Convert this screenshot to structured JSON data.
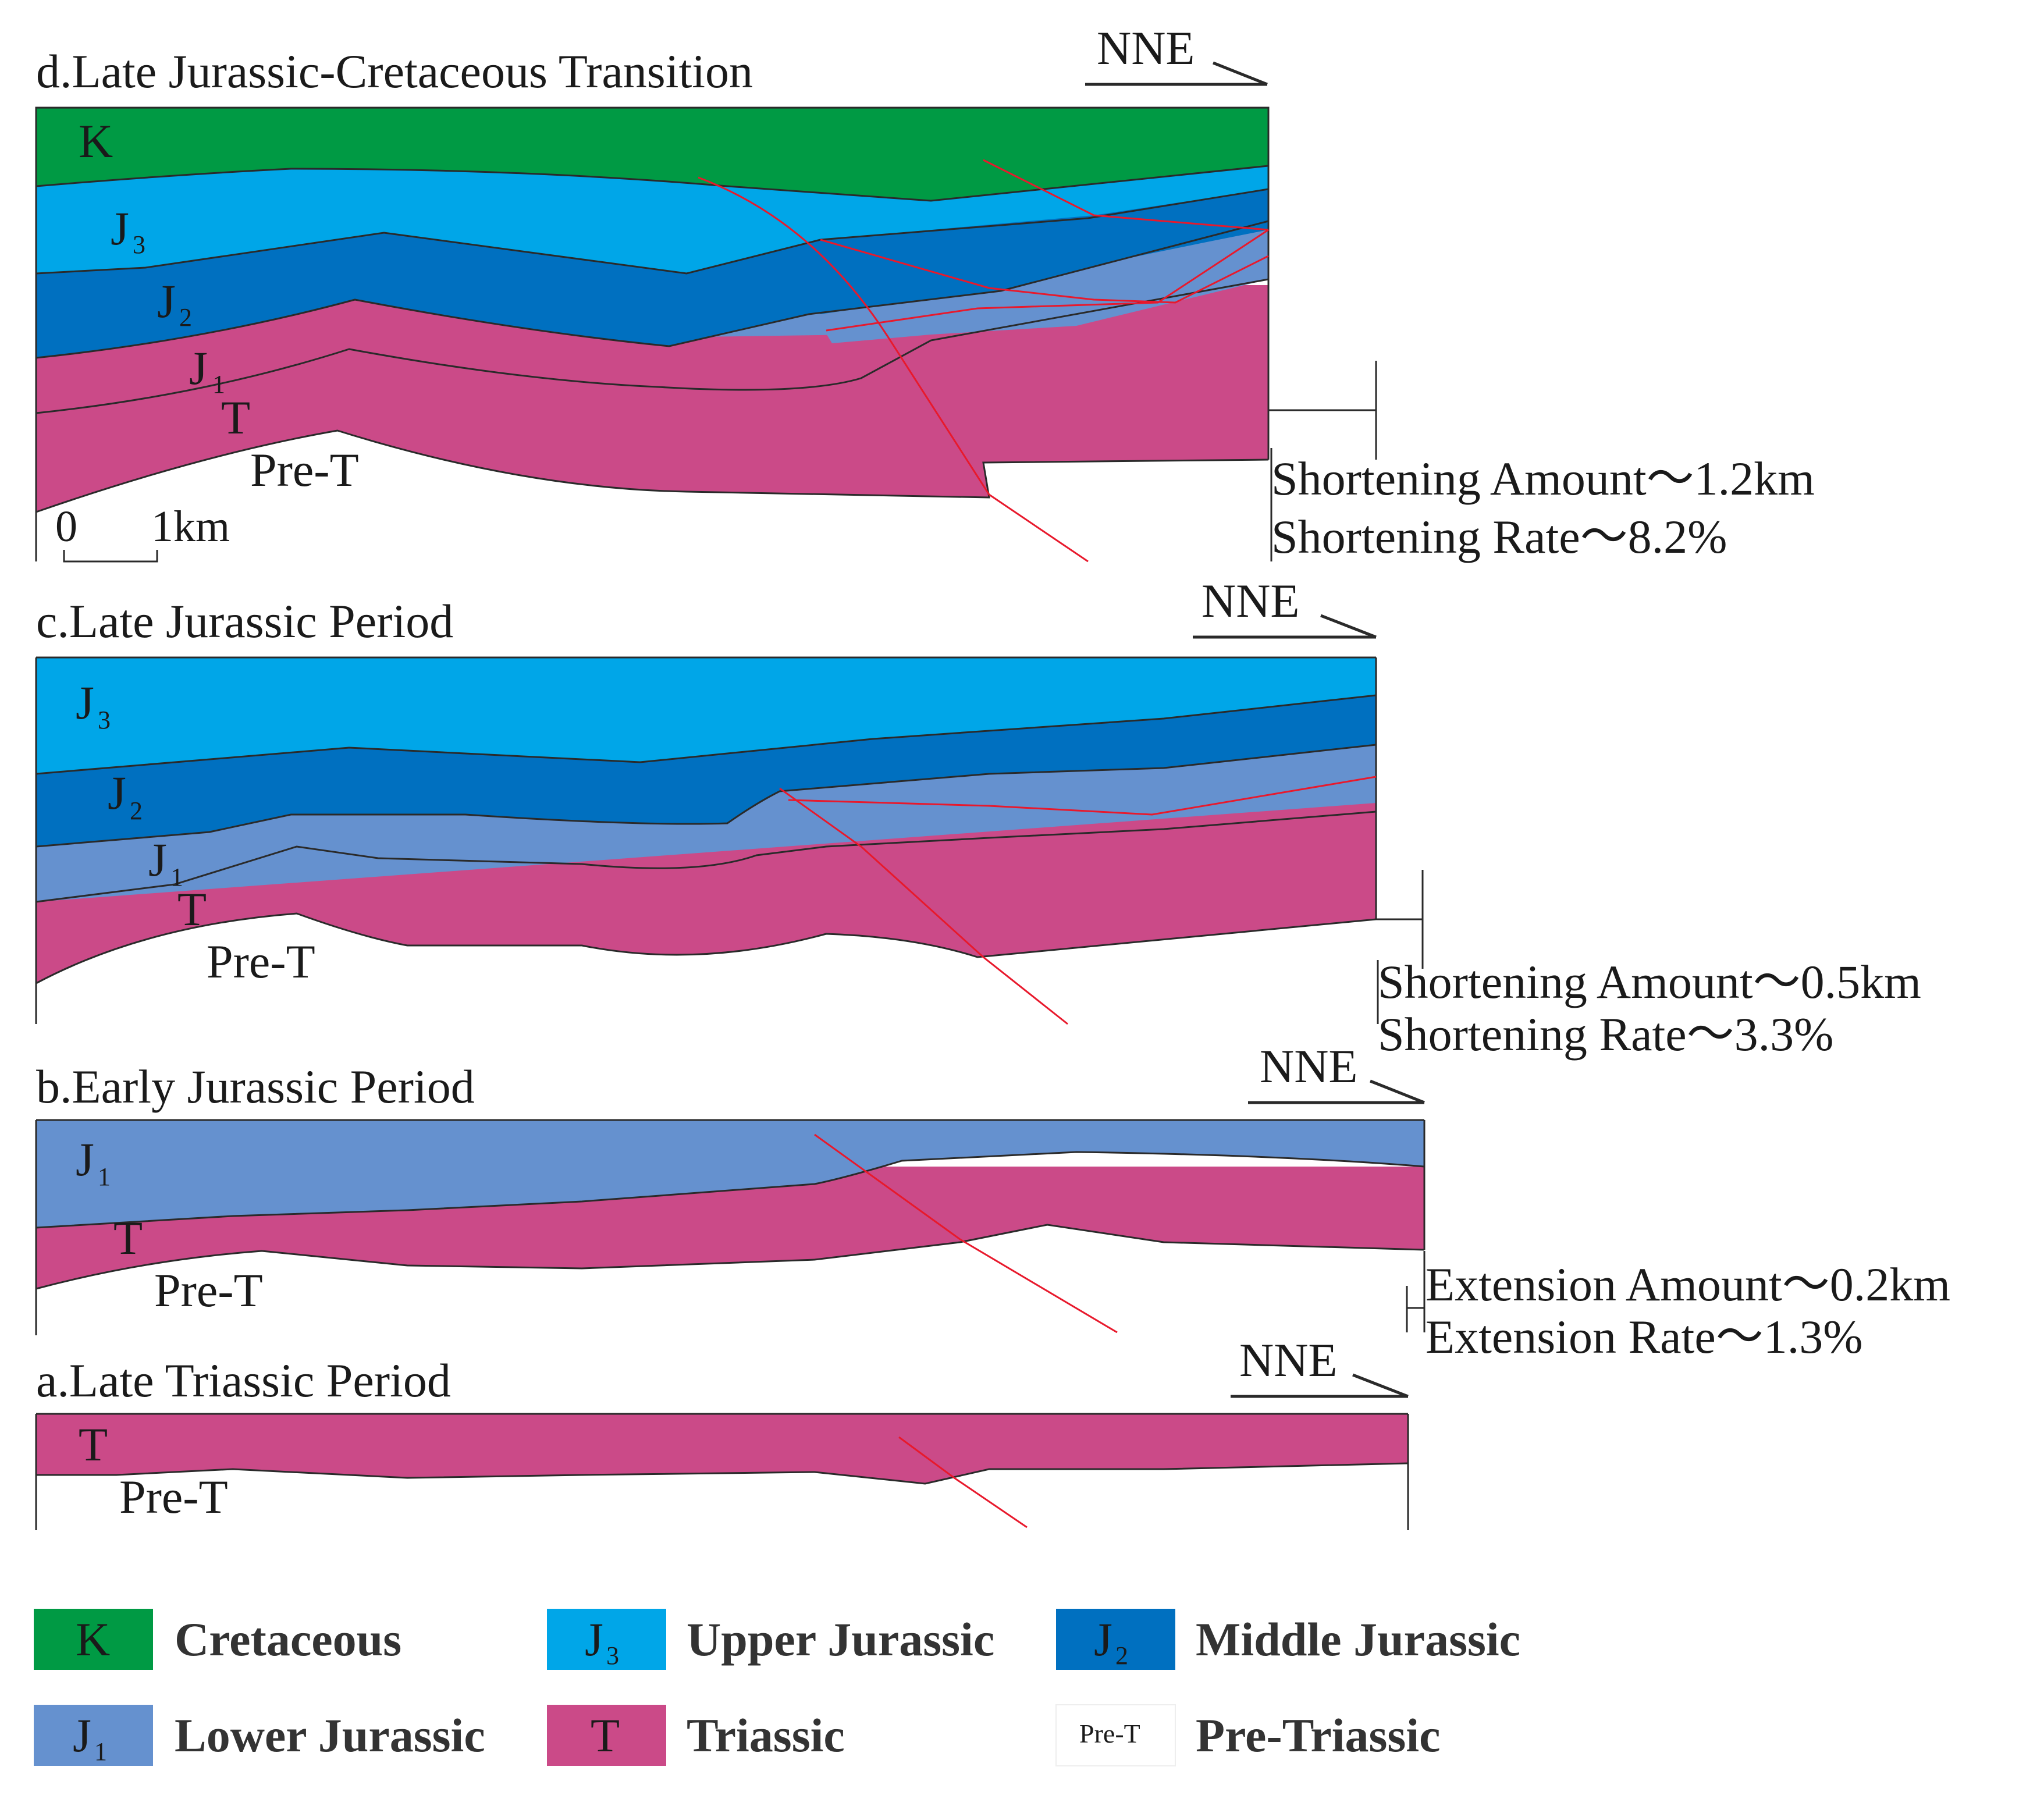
{
  "panels": {
    "d": {
      "title": "d.Late Jurassic-Cretaceous Transition",
      "direction": "NNE",
      "labels": {
        "K": "K",
        "J3": "J",
        "J3_sub": "3",
        "J2": "J",
        "J2_sub": "2",
        "J1": "J",
        "J1_sub": "1",
        "T": "T",
        "preT": "Pre-T"
      },
      "scale": {
        "zero": "0",
        "one": "1km"
      },
      "measure": {
        "line1": "Shortening Amount～1.2km",
        "line2": "Shortening Rate～8.2%"
      }
    },
    "c": {
      "title": "c.Late Jurassic Period",
      "direction": "NNE",
      "labels": {
        "J3": "J",
        "J3_sub": "3",
        "J2": "J",
        "J2_sub": "2",
        "J1": "J",
        "J1_sub": "1",
        "T": "T",
        "preT": "Pre-T"
      },
      "measure": {
        "line1": "Shortening Amount～0.5km",
        "line2": "Shortening Rate～3.3%"
      }
    },
    "b": {
      "title": "b.Early Jurassic Period",
      "direction": "NNE",
      "labels": {
        "J1": "J",
        "J1_sub": "1",
        "T": "T",
        "preT": "Pre-T"
      },
      "measure": {
        "line1": "Extension Amount～0.2km",
        "line2": "Extension Rate～1.3%"
      }
    },
    "a": {
      "title": "a.Late Triassic Period",
      "direction": "NNE",
      "labels": {
        "T": "T",
        "preT": "Pre-T"
      }
    }
  },
  "legend": [
    {
      "symbol": "K",
      "sub": "",
      "name": "Cretaceous",
      "color": "#009a44"
    },
    {
      "symbol": "J",
      "sub": "3",
      "name": "Upper Jurassic",
      "color": "#00a6e8"
    },
    {
      "symbol": "J",
      "sub": "2",
      "name": "Middle Jurassic",
      "color": "#0070c0"
    },
    {
      "symbol": "J",
      "sub": "1",
      "name": "Lower Jurassic",
      "color": "#6591cf"
    },
    {
      "symbol": "T",
      "sub": "",
      "name": "Triassic",
      "color": "#cb4a88"
    },
    {
      "symbol": "Pre-T",
      "sub": "",
      "name": "Pre-Triassic",
      "color": "#ffffff"
    }
  ],
  "colors": {
    "K": "#009a44",
    "J3": "#00a6e8",
    "J2": "#0070c0",
    "J1": "#6591cf",
    "T": "#cb4a88",
    "fault": "#e8192c"
  }
}
